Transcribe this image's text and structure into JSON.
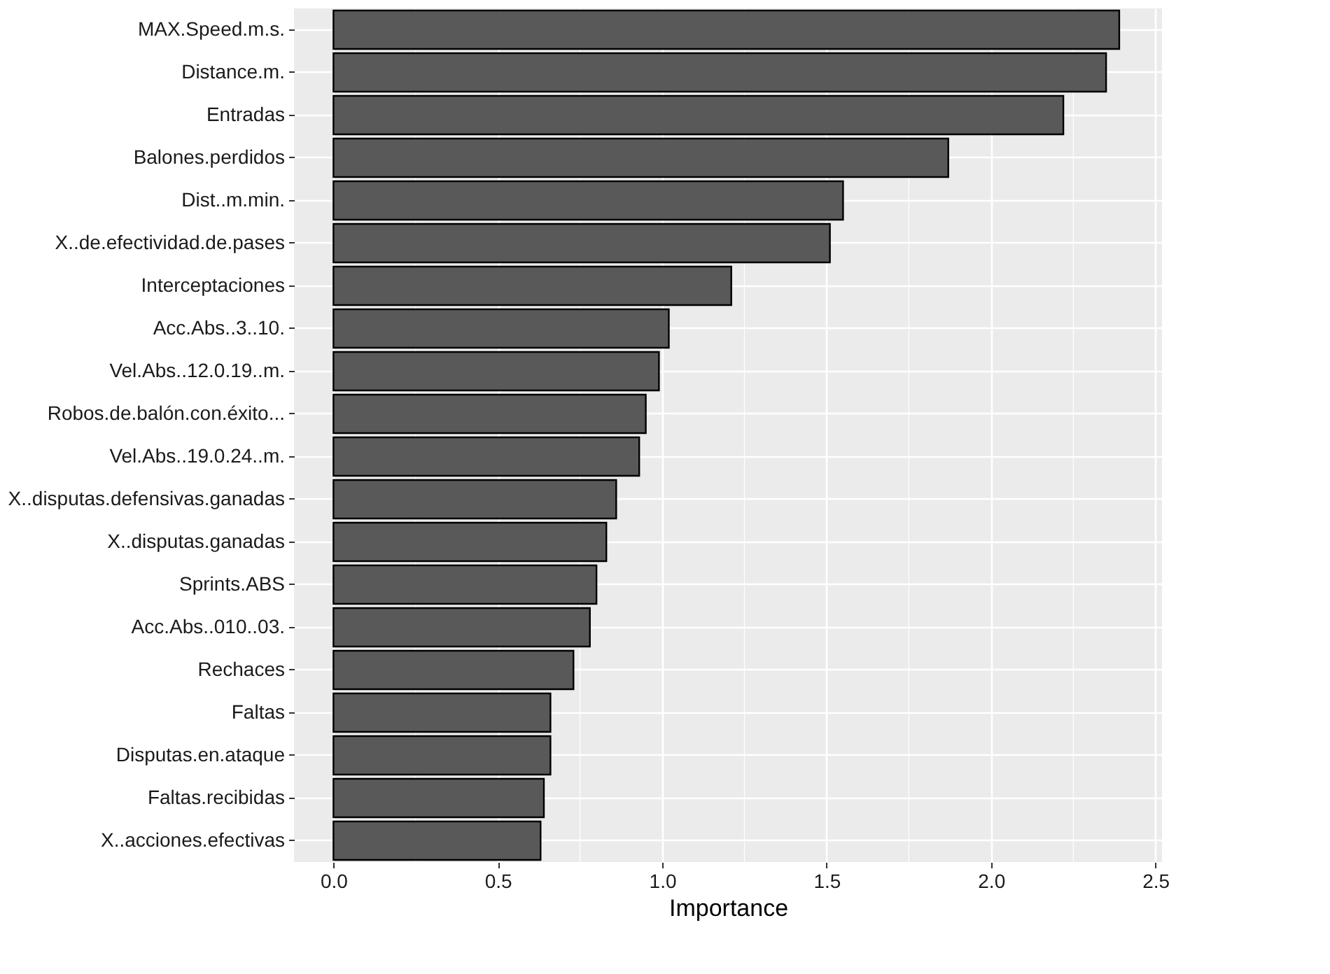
{
  "chart_data": {
    "type": "bar",
    "orientation": "horizontal",
    "xlabel": "Importance",
    "categories": [
      "MAX.Speed.m.s.",
      "Distance.m.",
      "Entradas",
      "Balones.perdidos",
      "Dist..m.min.",
      "X..de.efectividad.de.pases",
      "Interceptaciones",
      "Acc.Abs..3..10.",
      "Vel.Abs..12.0.19..m.",
      "Robos.de.balón.con.éxito...",
      "Vel.Abs..19.0.24..m.",
      "X..disputas.defensivas.ganadas",
      "X..disputas.ganadas",
      "Sprints.ABS",
      "Acc.Abs..010..03.",
      "Rechaces",
      "Faltas",
      "Disputas.en.ataque",
      "Faltas.recibidas",
      "X..acciones.efectivas"
    ],
    "values": [
      2.39,
      2.35,
      2.22,
      1.87,
      1.55,
      1.51,
      1.21,
      1.02,
      0.99,
      0.95,
      0.93,
      0.86,
      0.83,
      0.8,
      0.78,
      0.73,
      0.66,
      0.66,
      0.64,
      0.63
    ],
    "color": "#595959",
    "xlim": [
      -0.12,
      2.52
    ],
    "xticks": [
      {
        "value": 0,
        "label": "0.0"
      },
      {
        "value": 0.25,
        "label": null
      },
      {
        "value": 0.5,
        "label": "0.5"
      },
      {
        "value": 0.75,
        "label": null
      },
      {
        "value": 1,
        "label": "1.0"
      },
      {
        "value": 1.25,
        "label": null
      },
      {
        "value": 1.5,
        "label": "1.5"
      },
      {
        "value": 1.75,
        "label": null
      },
      {
        "value": 2,
        "label": "2.0"
      },
      {
        "value": 2.25,
        "label": null
      },
      {
        "value": 2.5,
        "label": "2.5"
      }
    ],
    "grid": true
  }
}
